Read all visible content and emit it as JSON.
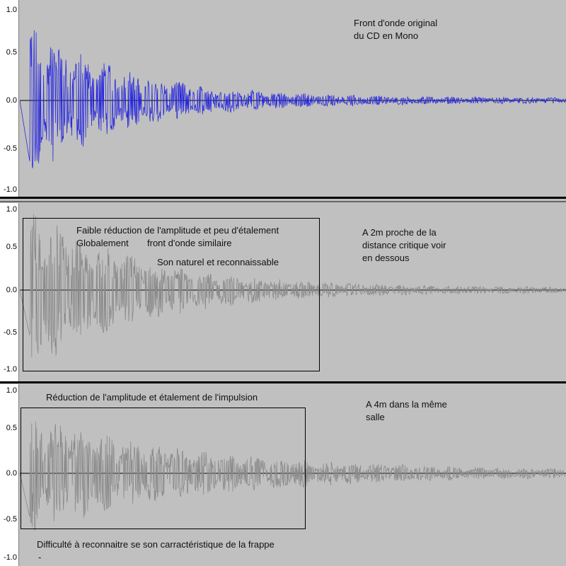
{
  "axis_ticks": [
    "1.0",
    "0.5",
    "0.0",
    "-0.5",
    "-1.0"
  ],
  "colors": {
    "background": "#c0c0c0",
    "original_wave": "#2b2bdc",
    "processed_wave": "#8a8a8a",
    "zero_line": "#000000"
  },
  "tracks": [
    {
      "label_lines": [
        "Front d'onde original",
        "du CD en Mono"
      ],
      "peak": 0.82,
      "decay": 2.6,
      "spread": 1.0
    },
    {
      "label_lines": [
        "A 2m proche de la",
        "distance critique voir",
        "en dessous"
      ],
      "box_text_1": "Faible réduction de l'amplitude et peu d'étalement",
      "box_text_2a": "Globalement",
      "box_text_2b": "front d'onde similaire",
      "box_text_3": "Son naturel et reconnaissable",
      "peak": 0.95,
      "decay": 2.2,
      "spread": 1.0
    },
    {
      "label_lines": [
        "A 4m dans la même",
        "salle"
      ],
      "box_title": "Réduction de l'amplitude et étalement de l'impulsion",
      "footer_text": "Difficulté à reconnaitre se son carractéristique de la frappe",
      "footer_mark": "-",
      "peak": 0.66,
      "decay": 1.5,
      "spread": 1.0
    }
  ]
}
